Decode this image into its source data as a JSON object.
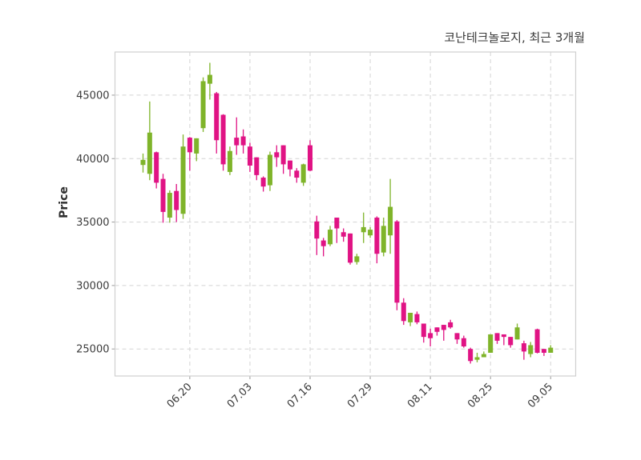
{
  "figure": {
    "title": "코난테크놀로지, 최근 3개월",
    "ylabel": "Price"
  },
  "chart_data": {
    "type": "candlestick",
    "title": "코난테크놀로지, 최근 3개월",
    "xlabel": "",
    "ylabel": "Price",
    "currency_hint": "KRW",
    "ylim": [
      22870,
      48400
    ],
    "yticks": [
      25000,
      30000,
      35000,
      40000,
      45000
    ],
    "grid": true,
    "grid_style": "dashed",
    "legend_position": "none",
    "up_color": "#7fb42a",
    "down_color": "#e01384",
    "axis_text_color": "#3b3b3b",
    "border_color": "#d4d4d4",
    "xtick_labels": [
      {
        "index": 7,
        "label": "06.20"
      },
      {
        "index": 16,
        "label": "07.03"
      },
      {
        "index": 25,
        "label": "07.16"
      },
      {
        "index": 34,
        "label": "07.29"
      },
      {
        "index": 43,
        "label": "08.11"
      },
      {
        "index": 52,
        "label": "08.25"
      },
      {
        "index": 61,
        "label": "09.05"
      }
    ],
    "candle_format": [
      "open",
      "high",
      "low",
      "close"
    ],
    "candles": [
      [
        39500,
        40400,
        38900,
        39900
      ],
      [
        38800,
        44500,
        38300,
        42050
      ],
      [
        40500,
        40550,
        37650,
        38100
      ],
      [
        38400,
        38800,
        34950,
        35800
      ],
      [
        35350,
        37500,
        34950,
        37300
      ],
      [
        37450,
        38000,
        35000,
        35950
      ],
      [
        35650,
        41900,
        35250,
        40950
      ],
      [
        41650,
        41700,
        39050,
        40500
      ],
      [
        40400,
        41600,
        39800,
        41600
      ],
      [
        42400,
        46400,
        42100,
        46100
      ],
      [
        45900,
        47550,
        44650,
        46600
      ],
      [
        45150,
        45250,
        40400,
        41450
      ],
      [
        43450,
        43500,
        39050,
        39550
      ],
      [
        38950,
        40950,
        38700,
        40600
      ],
      [
        41650,
        43250,
        40300,
        41050
      ],
      [
        41750,
        42300,
        40400,
        41050
      ],
      [
        40950,
        41250,
        38950,
        39450
      ],
      [
        40100,
        40100,
        38300,
        38700
      ],
      [
        38500,
        38600,
        37400,
        37800
      ],
      [
        37900,
        40550,
        37450,
        40300
      ],
      [
        40500,
        41050,
        39350,
        40100
      ],
      [
        41050,
        41050,
        38800,
        39550
      ],
      [
        39850,
        39850,
        38600,
        39150
      ],
      [
        39050,
        39250,
        38100,
        38500
      ],
      [
        38100,
        39600,
        37850,
        39550
      ],
      [
        41050,
        41450,
        39000,
        39050
      ],
      [
        35050,
        35500,
        32400,
        33700
      ],
      [
        33550,
        33750,
        32300,
        33100
      ],
      [
        33250,
        34700,
        33100,
        34400
      ],
      [
        35350,
        35350,
        33350,
        34500
      ],
      [
        34200,
        34500,
        33450,
        33850
      ],
      [
        34100,
        34100,
        31650,
        31800
      ],
      [
        31850,
        32500,
        31650,
        32300
      ],
      [
        34200,
        35750,
        33350,
        34600
      ],
      [
        33950,
        34600,
        33750,
        34400
      ],
      [
        35350,
        35450,
        31750,
        32500
      ],
      [
        32600,
        35350,
        32300,
        34700
      ],
      [
        33950,
        38400,
        32500,
        36200
      ],
      [
        35050,
        35150,
        28050,
        28650
      ],
      [
        28650,
        29000,
        26900,
        27200
      ],
      [
        27100,
        27850,
        26800,
        27850
      ],
      [
        27750,
        27950,
        26950,
        27100
      ],
      [
        27000,
        27000,
        25500,
        25950
      ],
      [
        26250,
        26600,
        25200,
        25850
      ],
      [
        26700,
        26700,
        26050,
        26350
      ],
      [
        26900,
        26900,
        25650,
        26500
      ],
      [
        27100,
        27300,
        26600,
        26700
      ],
      [
        26250,
        26250,
        25400,
        25750
      ],
      [
        25850,
        26050,
        25100,
        25200
      ],
      [
        25000,
        25100,
        23850,
        24050
      ],
      [
        24150,
        24700,
        23950,
        24350
      ],
      [
        24350,
        24800,
        24350,
        24600
      ],
      [
        24700,
        26150,
        24700,
        26150
      ],
      [
        26250,
        26250,
        25400,
        25650
      ],
      [
        26150,
        26150,
        25300,
        25950
      ],
      [
        25950,
        25950,
        25100,
        25300
      ],
      [
        25750,
        27000,
        25750,
        26700
      ],
      [
        25450,
        25650,
        24150,
        24800
      ],
      [
        24600,
        25550,
        24350,
        25300
      ],
      [
        26550,
        26600,
        24650,
        24700
      ],
      [
        25000,
        25000,
        24450,
        24700
      ],
      [
        24700,
        25300,
        24700,
        25100
      ]
    ]
  }
}
